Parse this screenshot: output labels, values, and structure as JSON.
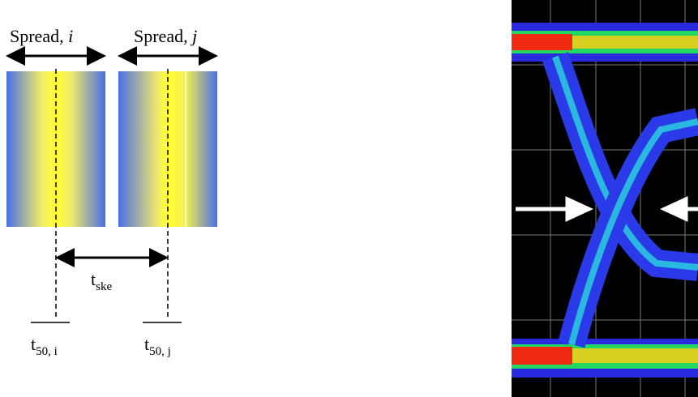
{
  "labels": {
    "spread_i": {
      "text": "Spread, ",
      "var": "i"
    },
    "spread_j": {
      "text": "Spread, ",
      "var": "j"
    },
    "t_skew": {
      "text": "t",
      "sub": "ske"
    },
    "t50_i": {
      "text": "t",
      "sub": "50, i"
    },
    "t50_j": {
      "text": "t",
      "sub": "50, j"
    }
  }
}
